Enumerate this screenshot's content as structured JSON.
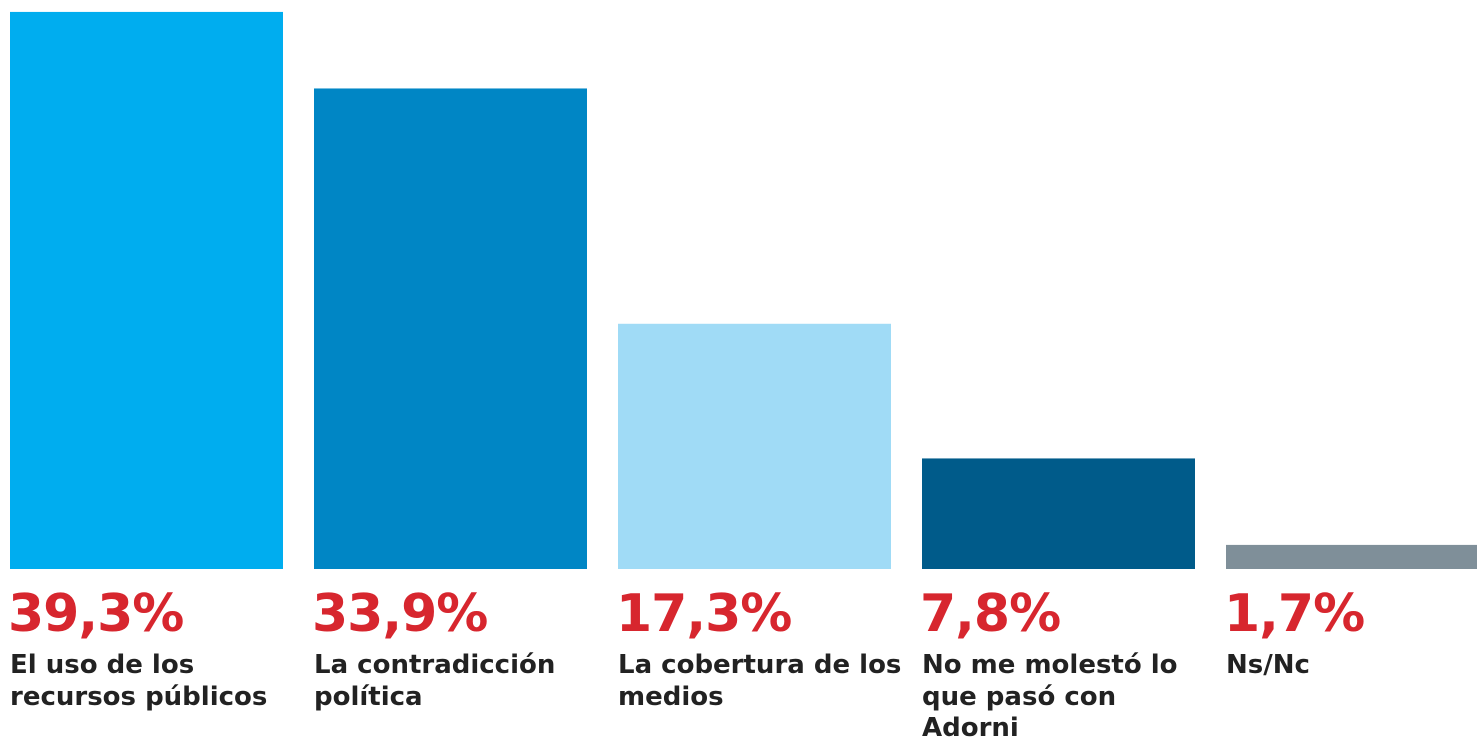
{
  "chart_data": {
    "type": "bar",
    "categories": [
      "El uso de los recursos públicos",
      "La contradicción política",
      "La cobertura de los medios",
      "No me molestó lo que pasó con Adorni",
      "Ns/Nc"
    ],
    "values": [
      39.3,
      33.9,
      17.3,
      7.8,
      1.7
    ],
    "value_labels": [
      "39,3%",
      "33,9%",
      "17,3%",
      "7,8%",
      "1,7%"
    ],
    "colors": [
      "#00adef",
      "#0086c5",
      "#a0dbf6",
      "#005b8a",
      "#7f8f99"
    ],
    "ylim": [
      0,
      40
    ]
  }
}
